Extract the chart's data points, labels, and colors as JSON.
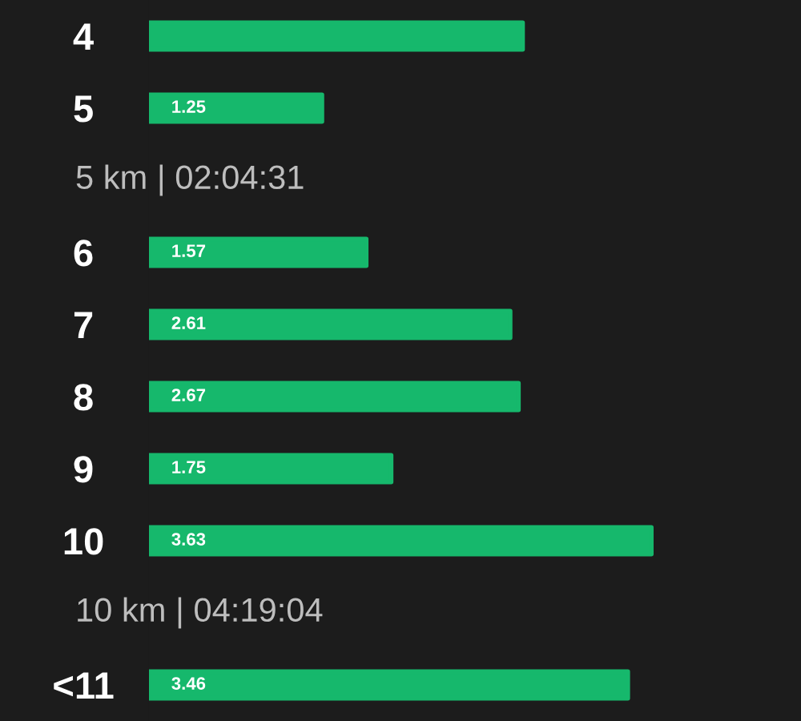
{
  "chart_data": {
    "type": "bar",
    "orientation": "horizontal",
    "categories": [
      "4",
      "5",
      "6",
      "7",
      "8",
      "9",
      "10",
      "<11"
    ],
    "values": [
      2.7,
      1.25,
      1.57,
      2.61,
      2.67,
      1.75,
      3.63,
      3.46
    ],
    "value_labels": [
      null,
      "1.25",
      "1.57",
      "2.61",
      "2.67",
      "1.75",
      "3.63",
      "3.46"
    ],
    "color": "#16b86c",
    "annotations": [
      "5 km | 02:04:31",
      "10 km | 04:19:04"
    ],
    "tick_labels": "y",
    "grid": false,
    "legend": false
  }
}
